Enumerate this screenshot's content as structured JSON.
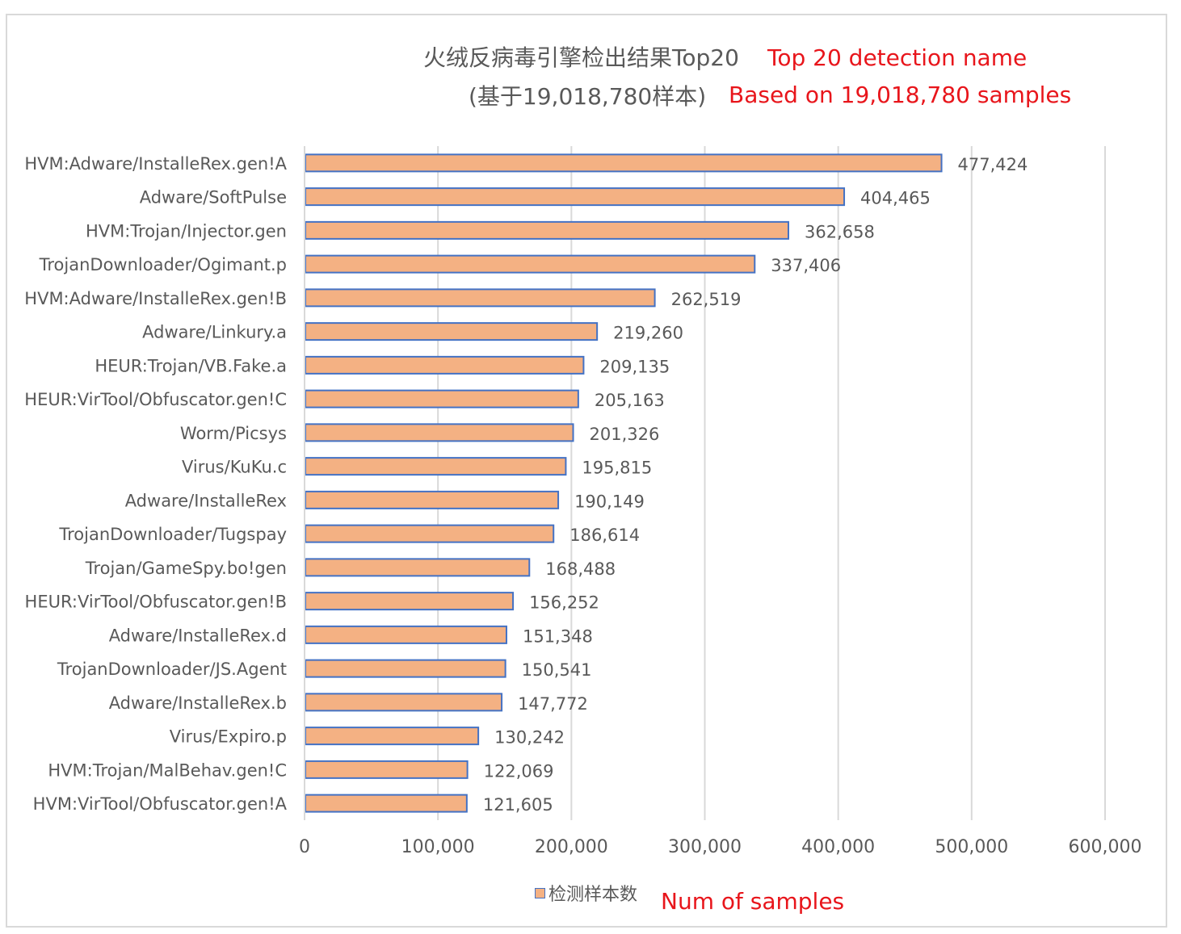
{
  "chart_data": {
    "type": "bar",
    "orientation": "horizontal",
    "title": "火绒反病毒引擎检出结果Top20",
    "subtitle": "(基于19,018,780样本)",
    "title_annotation": "Top 20 detection name",
    "subtitle_annotation": "Based on 19,018,780 samples",
    "categories": [
      "HVM:Adware/InstalleRex.gen!A",
      "Adware/SoftPulse",
      "HVM:Trojan/Injector.gen",
      "TrojanDownloader/Ogimant.p",
      "HVM:Adware/InstalleRex.gen!B",
      "Adware/Linkury.a",
      "HEUR:Trojan/VB.Fake.a",
      "HEUR:VirTool/Obfuscator.gen!C",
      "Worm/Picsys",
      "Virus/KuKu.c",
      "Adware/InstalleRex",
      "TrojanDownloader/Tugspay",
      "Trojan/GameSpy.bo!gen",
      "HEUR:VirTool/Obfuscator.gen!B",
      "Adware/InstalleRex.d",
      "TrojanDownloader/JS.Agent",
      "Adware/InstalleRex.b",
      "Virus/Expiro.p",
      "HVM:Trojan/MalBehav.gen!C",
      "HVM:VirTool/Obfuscator.gen!A"
    ],
    "series": [
      {
        "name": "检测样本数",
        "values": [
          477424,
          404465,
          362658,
          337406,
          262519,
          219260,
          209135,
          205163,
          201326,
          195815,
          190149,
          186614,
          168488,
          156252,
          151348,
          150541,
          147772,
          130242,
          122069,
          121605
        ],
        "value_labels": [
          "477,424",
          "404,465",
          "362,658",
          "337,406",
          "262,519",
          "219,260",
          "209,135",
          "205,163",
          "201,326",
          "195,815",
          "190,149",
          "186,614",
          "168,488",
          "156,252",
          "151,348",
          "150,541",
          "147,772",
          "130,242",
          "122,069",
          "121,605"
        ]
      }
    ],
    "legend_annotation": "Num of samples",
    "xlim": [
      0,
      600000
    ],
    "x_ticks": [
      0,
      100000,
      200000,
      300000,
      400000,
      500000,
      600000
    ],
    "x_tick_labels": [
      "0",
      "100,000",
      "200,000",
      "300,000",
      "400,000",
      "500,000",
      "600,000"
    ],
    "grid": "vertical",
    "legend_position": "bottom",
    "colors": {
      "bar_fill": "#f4b183",
      "bar_border": "#4472c4",
      "grid": "#d9d9d9",
      "text": "#595959",
      "annotation": "#e8151b"
    }
  }
}
